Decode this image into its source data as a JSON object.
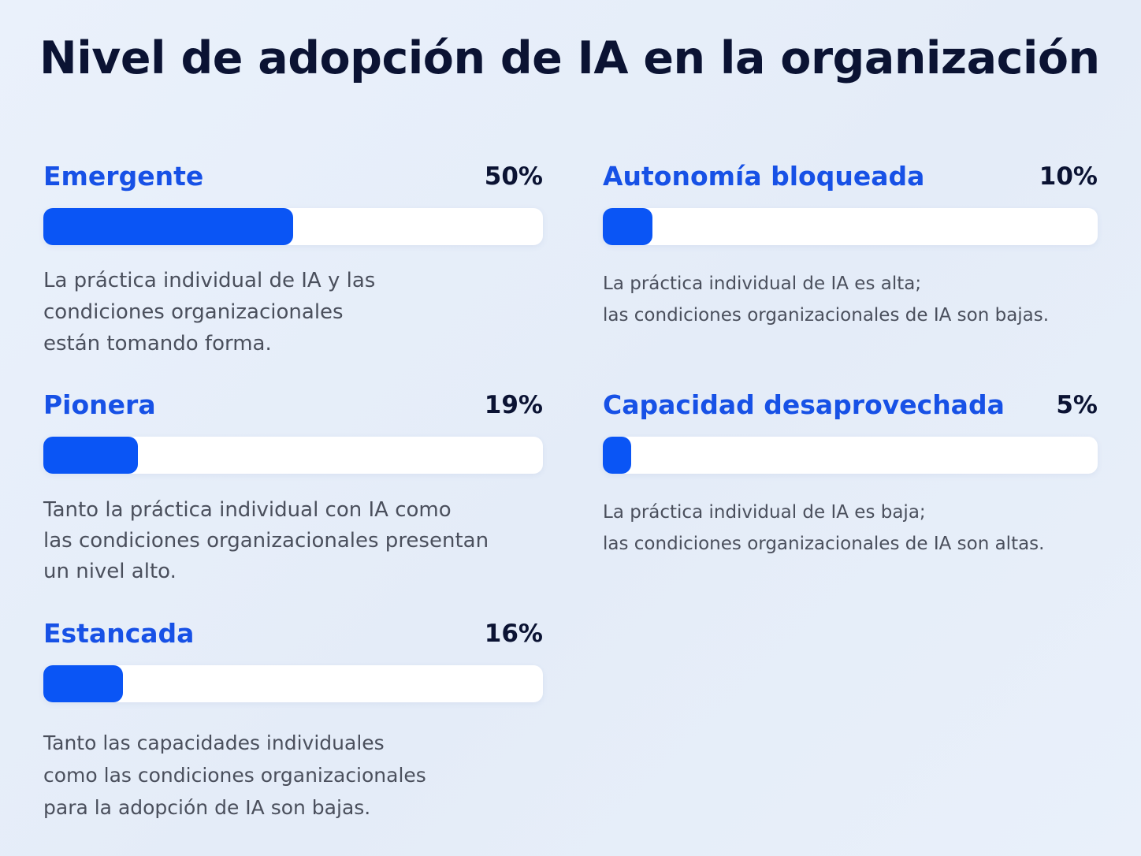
{
  "title": "Nivel de adopción de IA en la organización",
  "colors": {
    "accent": "#1751e6",
    "bar_fill": "#0a55f5",
    "bar_track": "#ffffff",
    "title": "#0b1333",
    "description": "#4a4f5c",
    "background": "#e6eef9"
  },
  "chart_data": {
    "type": "bar",
    "title": "Nivel de adopción de IA en la organización",
    "unit": "%",
    "ylim": [
      0,
      100
    ],
    "categories": [
      "Emergente",
      "Pionera",
      "Estancada",
      "Autonomía bloqueada",
      "Capacidad desaprovechada"
    ],
    "values": [
      50,
      19,
      16,
      10,
      5
    ],
    "items": [
      {
        "label": "Emergente",
        "value": 50,
        "value_label": "50%",
        "description": "La práctica individual de IA y las\ncondiciones organizacionales\nestán tomando forma."
      },
      {
        "label": "Pionera",
        "value": 19,
        "value_label": "19%",
        "description": "Tanto la práctica individual con IA como\nlas condiciones organizacionales presentan\nun nivel alto."
      },
      {
        "label": "Estancada",
        "value": 16,
        "value_label": "16%",
        "description": "Tanto las capacidades individuales\ncomo las condiciones organizacionales\npara la adopción de IA son bajas."
      },
      {
        "label": "Autonomía bloqueada",
        "value": 10,
        "value_label": "10%",
        "description": "La práctica individual de IA es alta;\nlas condiciones organizacionales de IA son bajas."
      },
      {
        "label": "Capacidad desaprovechada",
        "value": 5,
        "value_label": "5%",
        "description": "La práctica individual de IA es baja;\nlas condiciones organizacionales de IA son altas."
      }
    ]
  }
}
